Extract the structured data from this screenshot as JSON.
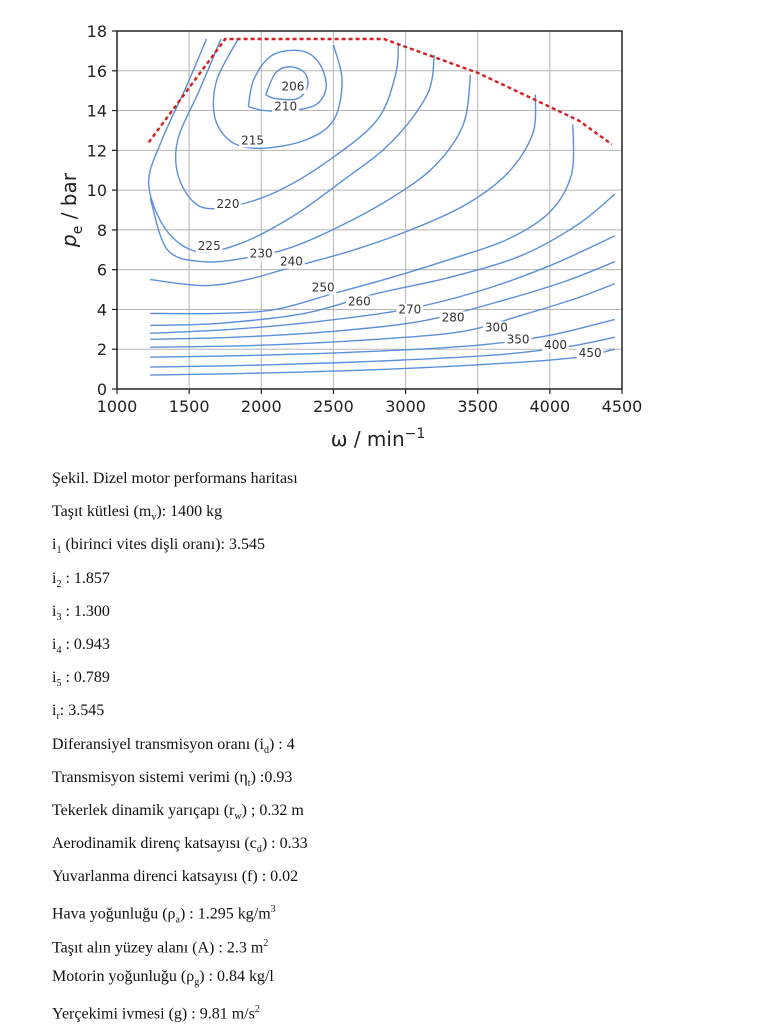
{
  "chart_data": {
    "type": "contour",
    "xlabel": "ω / min⁻¹",
    "ylabel": "pe / bar",
    "xlim": [
      1000,
      4500
    ],
    "ylim": [
      0,
      18
    ],
    "xticks": [
      1000,
      1500,
      2000,
      2500,
      3000,
      3500,
      4000,
      4500
    ],
    "yticks": [
      0,
      2,
      4,
      6,
      8,
      10,
      12,
      14,
      16,
      18
    ],
    "grid": true,
    "full_load_curve": {
      "style": "red dashed",
      "points": [
        [
          1220,
          12.4
        ],
        [
          1750,
          17.6
        ],
        [
          2850,
          17.6
        ],
        [
          3500,
          15.9
        ],
        [
          4200,
          13.5
        ],
        [
          4430,
          12.3
        ]
      ]
    },
    "contours": [
      {
        "label": "206",
        "label_at": [
          2140,
          15.0
        ],
        "points": [
          [
            2030,
            14.8
          ],
          [
            2100,
            15.9
          ],
          [
            2200,
            16.2
          ],
          [
            2300,
            15.9
          ],
          [
            2320,
            15.2
          ],
          [
            2250,
            14.6
          ],
          [
            2100,
            14.6
          ],
          [
            2030,
            14.8
          ]
        ]
      },
      {
        "label": "210",
        "label_at": [
          2090,
          14.0
        ],
        "points": [
          [
            1910,
            14.2
          ],
          [
            1950,
            15.6
          ],
          [
            2080,
            16.8
          ],
          [
            2280,
            17.0
          ],
          [
            2400,
            16.4
          ],
          [
            2450,
            15.2
          ],
          [
            2380,
            14.3
          ],
          [
            2200,
            14.0
          ],
          [
            2020,
            14.0
          ],
          [
            1910,
            14.2
          ]
        ]
      },
      {
        "label": "215",
        "label_at": [
          1860,
          12.3
        ],
        "points": [
          [
            1840,
            17.6
          ],
          [
            1690,
            15.5
          ],
          [
            1680,
            13.6
          ],
          [
            1800,
            12.4
          ],
          [
            2000,
            12.1
          ],
          [
            2300,
            12.5
          ],
          [
            2500,
            13.5
          ],
          [
            2560,
            15.5
          ],
          [
            2500,
            17.3
          ]
        ]
      },
      {
        "label": "220",
        "label_at": [
          1690,
          9.1
        ],
        "points": [
          [
            1720,
            17.6
          ],
          [
            1570,
            15.0
          ],
          [
            1420,
            12.5
          ],
          [
            1430,
            10.6
          ],
          [
            1570,
            9.2
          ],
          [
            1800,
            9.2
          ],
          [
            2100,
            9.9
          ],
          [
            2450,
            11.4
          ],
          [
            2800,
            13.5
          ],
          [
            2930,
            15.8
          ],
          [
            2950,
            17.4
          ]
        ]
      },
      {
        "label": "225",
        "label_at": [
          1560,
          7.0
        ],
        "points": [
          [
            1620,
            17.6
          ],
          [
            1480,
            15.2
          ],
          [
            1310,
            12.5
          ],
          [
            1220,
            10.3
          ],
          [
            1340,
            8.0
          ],
          [
            1560,
            6.9
          ],
          [
            1850,
            7.3
          ],
          [
            2200,
            8.6
          ],
          [
            2550,
            10.4
          ],
          [
            2900,
            12.4
          ],
          [
            3150,
            14.8
          ],
          [
            3200,
            16.8
          ]
        ]
      },
      {
        "label": "230",
        "label_at": [
          1920,
          6.6
        ],
        "points": [
          [
            1230,
            9.6
          ],
          [
            1350,
            7.0
          ],
          [
            1600,
            6.4
          ],
          [
            1900,
            6.6
          ],
          [
            2200,
            7.1
          ],
          [
            2550,
            8.2
          ],
          [
            2900,
            9.6
          ],
          [
            3200,
            11.2
          ],
          [
            3400,
            13.3
          ],
          [
            3450,
            15.8
          ]
        ]
      },
      {
        "label": "240",
        "label_at": [
          2130,
          6.2
        ],
        "points": [
          [
            1230,
            5.5
          ],
          [
            1600,
            5.2
          ],
          [
            1900,
            5.5
          ],
          [
            2200,
            6.1
          ],
          [
            2600,
            6.9
          ],
          [
            3000,
            7.9
          ],
          [
            3400,
            9.2
          ],
          [
            3700,
            10.8
          ],
          [
            3880,
            12.8
          ],
          [
            3900,
            14.8
          ]
        ]
      },
      {
        "label": "250",
        "label_at": [
          2350,
          4.9
        ],
        "points": [
          [
            1230,
            3.8
          ],
          [
            1700,
            3.8
          ],
          [
            2100,
            4.0
          ],
          [
            2500,
            4.8
          ],
          [
            2900,
            5.6
          ],
          [
            3300,
            6.5
          ],
          [
            3700,
            7.5
          ],
          [
            4000,
            8.9
          ],
          [
            4150,
            10.8
          ],
          [
            4160,
            13.3
          ]
        ]
      },
      {
        "label": "260",
        "label_at": [
          2600,
          4.2
        ],
        "points": [
          [
            1230,
            3.2
          ],
          [
            1700,
            3.3
          ],
          [
            2300,
            3.8
          ],
          [
            2800,
            4.8
          ],
          [
            3300,
            5.6
          ],
          [
            3800,
            6.7
          ],
          [
            4200,
            8.3
          ],
          [
            4450,
            9.8
          ]
        ]
      },
      {
        "label": "270",
        "label_at": [
          2950,
          3.8
        ],
        "points": [
          [
            1230,
            2.8
          ],
          [
            1800,
            3.0
          ],
          [
            2400,
            3.4
          ],
          [
            3000,
            4.0
          ],
          [
            3500,
            4.9
          ],
          [
            4000,
            6.2
          ],
          [
            4450,
            7.7
          ]
        ]
      },
      {
        "label": "280",
        "label_at": [
          3250,
          3.4
        ],
        "points": [
          [
            1230,
            2.5
          ],
          [
            1800,
            2.6
          ],
          [
            2500,
            2.9
          ],
          [
            3100,
            3.4
          ],
          [
            3600,
            4.3
          ],
          [
            4100,
            5.4
          ],
          [
            4450,
            6.4
          ]
        ]
      },
      {
        "label": "300",
        "label_at": [
          3550,
          2.9
        ],
        "points": [
          [
            1230,
            2.1
          ],
          [
            2000,
            2.2
          ],
          [
            2800,
            2.5
          ],
          [
            3400,
            2.9
          ],
          [
            3800,
            3.7
          ],
          [
            4200,
            4.6
          ],
          [
            4450,
            5.3
          ]
        ]
      },
      {
        "label": "350",
        "label_at": [
          3700,
          2.3
        ],
        "points": [
          [
            1230,
            1.6
          ],
          [
            2000,
            1.7
          ],
          [
            2800,
            1.9
          ],
          [
            3500,
            2.2
          ],
          [
            4000,
            2.7
          ],
          [
            4450,
            3.5
          ]
        ]
      },
      {
        "label": "400",
        "label_at": [
          3960,
          2.0
        ],
        "points": [
          [
            1230,
            1.1
          ],
          [
            2000,
            1.2
          ],
          [
            2800,
            1.4
          ],
          [
            3600,
            1.7
          ],
          [
            4100,
            2.1
          ],
          [
            4450,
            2.6
          ]
        ]
      },
      {
        "label": "450",
        "label_at": [
          4200,
          1.6
        ],
        "points": [
          [
            1230,
            0.7
          ],
          [
            2000,
            0.8
          ],
          [
            2900,
            1.0
          ],
          [
            3700,
            1.3
          ],
          [
            4200,
            1.6
          ],
          [
            4450,
            2.0
          ]
        ]
      }
    ]
  },
  "caption": "Şekil. Dizel motor performans haritası",
  "params": [
    {
      "pre": "Taşıt kütlesi  (m",
      "sub": "v",
      "post": "): 1400 kg",
      "sup": "",
      "tail": ""
    },
    {
      "pre": "i",
      "sub": "1",
      "post": " (birinci vites dişli oranı):  3.545",
      "sup": "",
      "tail": ""
    },
    {
      "pre": "i",
      "sub": "2",
      "post": " : 1.857",
      "sup": "",
      "tail": ""
    },
    {
      "pre": "i",
      "sub": "3",
      "post": " : 1.300",
      "sup": "",
      "tail": ""
    },
    {
      "pre": "i",
      "sub": "4",
      "post": " : 0.943",
      "sup": "",
      "tail": ""
    },
    {
      "pre": "i",
      "sub": "5",
      "post": " : 0.789",
      "sup": "",
      "tail": ""
    },
    {
      "pre": "i",
      "sub": "r",
      "post": ": 3.545",
      "sup": "",
      "tail": ""
    },
    {
      "pre": "Diferansiyel transmisyon oranı (i",
      "sub": "d",
      "post": ") : 4",
      "sup": "",
      "tail": ""
    },
    {
      "pre": "Transmisyon sistemi verimi (η",
      "sub": "t",
      "post": ") :0.93",
      "sup": "",
      "tail": ""
    },
    {
      "pre": "Tekerlek dinamik yarıçapı (r",
      "sub": "w",
      "post": ") ; 0.32 m",
      "sup": "",
      "tail": ""
    },
    {
      "pre": "Aerodinamik direnç katsayısı (c",
      "sub": "d",
      "post": ") : 0.33",
      "sup": "",
      "tail": ""
    },
    {
      "pre": "Yuvarlanma direnci katsayısı (f) : 0.02",
      "sub": "",
      "post": "",
      "sup": "",
      "tail": ""
    },
    {
      "pre": "Hava yoğunluğu (ρ",
      "sub": "a",
      "post": ") : 1.295 kg/m",
      "sup": "3",
      "tail": ""
    },
    {
      "pre": "Taşıt alın yüzey alanı (A) : 2.3 m",
      "sub": "",
      "post": "",
      "sup": "2",
      "tail": ""
    },
    {
      "pre": "Motorin yoğunluğu (ρ",
      "sub": "g",
      "post": ")  : 0.84 kg/l",
      "sup": "",
      "tail": ""
    },
    {
      "pre": "Yerçekimi ivmesi (g) : 9.81 m/s",
      "sub": "",
      "post": "",
      "sup": "2",
      "tail": ""
    }
  ]
}
